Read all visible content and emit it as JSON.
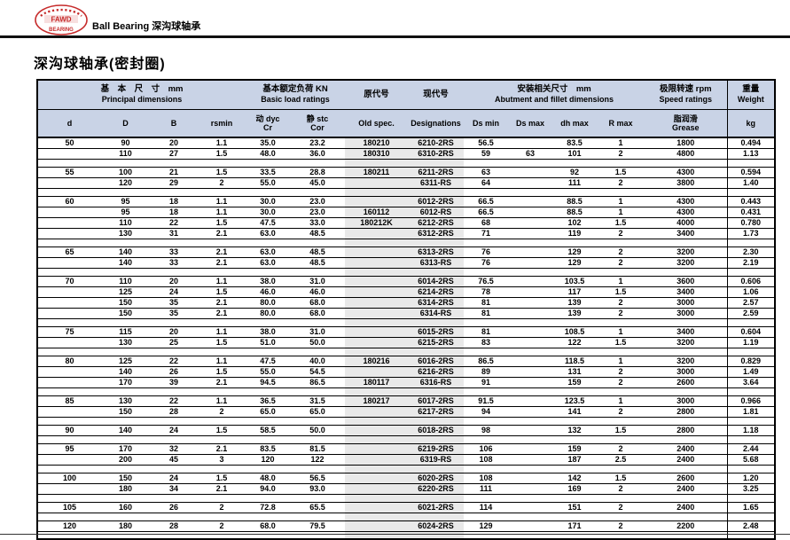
{
  "page": {
    "logo": {
      "line1": "FAWD",
      "line2": "BEARING"
    },
    "brand_text": "Ball Bearing 深沟球轴承",
    "title": "深沟球轴承(密封圈)"
  },
  "colors": {
    "header_bg": "#c9d3e6",
    "gray_column": "#e9e9e9",
    "logo_red": "#c62b2b"
  },
  "table": {
    "header": {
      "principal_cn": "基　本　尺　寸　mm",
      "principal_en": "Principal dimensions",
      "load_cn": "基本额定负荷 KN",
      "load_en": "Basic load ratings",
      "old_cn": "原代号",
      "old_en": "Old spec.",
      "new_cn": "现代号",
      "new_en": "Designations",
      "abutment_cn": "安装相关尺寸　mm",
      "abutment_en": "Abutment and fillet dimensions",
      "speed_cn": "极限转速 rpm",
      "speed_en": "Speed ratings",
      "weight_cn": "重量",
      "weight_en": "Weight",
      "col_d": "d",
      "col_D": "D",
      "col_B": "B",
      "col_rsmin": "rsmin",
      "col_cr_cn": "动 dyc",
      "col_cr": "Cr",
      "col_cor_cn": "静 stc",
      "col_cor": "Cor",
      "col_dsmin": "Ds min",
      "col_dsmax": "Ds max",
      "col_dhmax": "dh max",
      "col_rmax": "R max",
      "col_grease_cn": "脂润滑",
      "col_grease_en": "Grease",
      "col_kg": "kg"
    },
    "groups": [
      [
        [
          "50",
          "90",
          "20",
          "1.1",
          "35.0",
          "23.2",
          "180210",
          "6210-2RS",
          "56.5",
          "",
          "83.5",
          "1",
          "1800",
          "0.494"
        ],
        [
          "",
          "110",
          "27",
          "1.5",
          "48.0",
          "36.0",
          "180310",
          "6310-2RS",
          "59",
          "63",
          "101",
          "2",
          "4800",
          "1.13"
        ]
      ],
      [
        [
          "55",
          "100",
          "21",
          "1.5",
          "33.5",
          "28.8",
          "180211",
          "6211-2RS",
          "63",
          "",
          "92",
          "1.5",
          "4300",
          "0.594"
        ],
        [
          "",
          "120",
          "29",
          "2",
          "55.0",
          "45.0",
          "",
          "6311-RS",
          "64",
          "",
          "111",
          "2",
          "3800",
          "1.40"
        ]
      ],
      [
        [
          "60",
          "95",
          "18",
          "1.1",
          "30.0",
          "23.0",
          "",
          "6012-2RS",
          "66.5",
          "",
          "88.5",
          "1",
          "4300",
          "0.443"
        ],
        [
          "",
          "95",
          "18",
          "1.1",
          "30.0",
          "23.0",
          "160112",
          "6012-RS",
          "66.5",
          "",
          "88.5",
          "1",
          "4300",
          "0.431"
        ],
        [
          "",
          "110",
          "22",
          "1.5",
          "47.5",
          "33.0",
          "180212K",
          "6212-2RS",
          "68",
          "",
          "102",
          "1.5",
          "4000",
          "0.780"
        ],
        [
          "",
          "130",
          "31",
          "2.1",
          "63.0",
          "48.5",
          "",
          "6312-2RS",
          "71",
          "",
          "119",
          "2",
          "3400",
          "1.73"
        ]
      ],
      [
        [
          "65",
          "140",
          "33",
          "2.1",
          "63.0",
          "48.5",
          "",
          "6313-2RS",
          "76",
          "",
          "129",
          "2",
          "3200",
          "2.30"
        ],
        [
          "",
          "140",
          "33",
          "2.1",
          "63.0",
          "48.5",
          "",
          "6313-RS",
          "76",
          "",
          "129",
          "2",
          "3200",
          "2.19"
        ]
      ],
      [
        [
          "70",
          "110",
          "20",
          "1.1",
          "38.0",
          "31.0",
          "",
          "6014-2RS",
          "76.5",
          "",
          "103.5",
          "1",
          "3600",
          "0.606"
        ],
        [
          "",
          "125",
          "24",
          "1.5",
          "46.0",
          "46.0",
          "",
          "6214-2RS",
          "78",
          "",
          "117",
          "1.5",
          "3400",
          "1.06"
        ],
        [
          "",
          "150",
          "35",
          "2.1",
          "80.0",
          "68.0",
          "",
          "6314-2RS",
          "81",
          "",
          "139",
          "2",
          "3000",
          "2.57"
        ],
        [
          "",
          "150",
          "35",
          "2.1",
          "80.0",
          "68.0",
          "",
          "6314-RS",
          "81",
          "",
          "139",
          "2",
          "3000",
          "2.59"
        ]
      ],
      [
        [
          "75",
          "115",
          "20",
          "1.1",
          "38.0",
          "31.0",
          "",
          "6015-2RS",
          "81",
          "",
          "108.5",
          "1",
          "3400",
          "0.604"
        ],
        [
          "",
          "130",
          "25",
          "1.5",
          "51.0",
          "50.0",
          "",
          "6215-2RS",
          "83",
          "",
          "122",
          "1.5",
          "3200",
          "1.19"
        ]
      ],
      [
        [
          "80",
          "125",
          "22",
          "1.1",
          "47.5",
          "40.0",
          "180216",
          "6016-2RS",
          "86.5",
          "",
          "118.5",
          "1",
          "3200",
          "0.829"
        ],
        [
          "",
          "140",
          "26",
          "1.5",
          "55.0",
          "54.5",
          "",
          "6216-2RS",
          "89",
          "",
          "131",
          "2",
          "3000",
          "1.49"
        ],
        [
          "",
          "170",
          "39",
          "2.1",
          "94.5",
          "86.5",
          "180117",
          "6316-RS",
          "91",
          "",
          "159",
          "2",
          "2600",
          "3.64"
        ]
      ],
      [
        [
          "85",
          "130",
          "22",
          "1.1",
          "36.5",
          "31.5",
          "180217",
          "6017-2RS",
          "91.5",
          "",
          "123.5",
          "1",
          "3000",
          "0.966"
        ],
        [
          "",
          "150",
          "28",
          "2",
          "65.0",
          "65.0",
          "",
          "6217-2RS",
          "94",
          "",
          "141",
          "2",
          "2800",
          "1.81"
        ]
      ],
      [
        [
          "90",
          "140",
          "24",
          "1.5",
          "58.5",
          "50.0",
          "",
          "6018-2RS",
          "98",
          "",
          "132",
          "1.5",
          "2800",
          "1.18"
        ]
      ],
      [
        [
          "95",
          "170",
          "32",
          "2.1",
          "83.5",
          "81.5",
          "",
          "6219-2RS",
          "106",
          "",
          "159",
          "2",
          "2400",
          "2.44"
        ],
        [
          "",
          "200",
          "45",
          "3",
          "120",
          "122",
          "",
          "6319-RS",
          "108",
          "",
          "187",
          "2.5",
          "2400",
          "5.68"
        ]
      ],
      [
        [
          "100",
          "150",
          "24",
          "1.5",
          "48.0",
          "56.5",
          "",
          "6020-2RS",
          "108",
          "",
          "142",
          "1.5",
          "2600",
          "1.20"
        ],
        [
          "",
          "180",
          "34",
          "2.1",
          "94.0",
          "93.0",
          "",
          "6220-2RS",
          "111",
          "",
          "169",
          "2",
          "2400",
          "3.25"
        ]
      ],
      [
        [
          "105",
          "160",
          "26",
          "2",
          "72.8",
          "65.5",
          "",
          "6021-2RS",
          "114",
          "",
          "151",
          "2",
          "2400",
          "1.65"
        ]
      ],
      [
        [
          "120",
          "180",
          "28",
          "2",
          "68.0",
          "79.5",
          "",
          "6024-2RS",
          "129",
          "",
          "171",
          "2",
          "2200",
          "2.48"
        ]
      ]
    ]
  }
}
